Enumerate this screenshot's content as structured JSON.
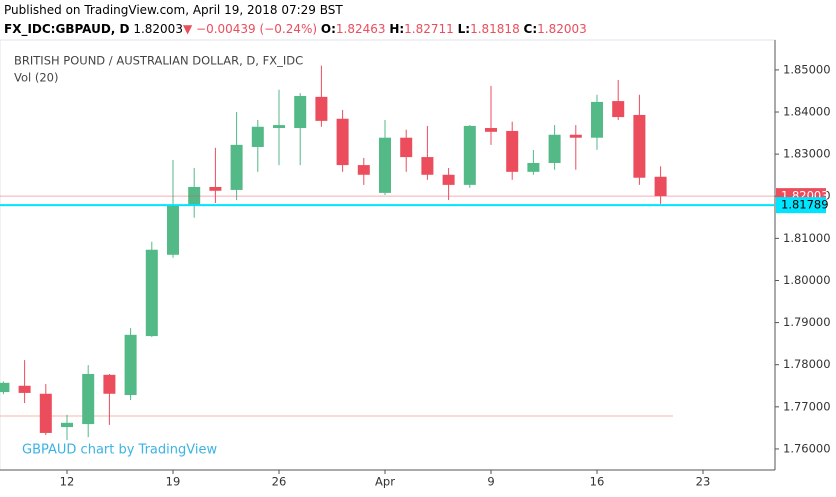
{
  "header": {
    "published": "Published on TradingView.com, April 19, 2018 07:29 BST",
    "symbol": "FX_IDC:GBPAUD, D",
    "price": "1.82003",
    "change": "−0.00439 (−0.24%)",
    "ohlc": [
      {
        "label": "O:",
        "value": "1.82463"
      },
      {
        "label": "H:",
        "value": "1.82711"
      },
      {
        "label": "L:",
        "value": "1.81818"
      },
      {
        "label": "C:",
        "value": "1.82003"
      }
    ]
  },
  "chart_data": {
    "type": "candlestick",
    "legend_title": "BRITISH POUND / AUSTRALIAN DOLLAR, D, FX_IDC",
    "indicator": "Vol (20)",
    "watermark": "GBPAUD chart by TradingView",
    "categories": [
      null,
      null,
      null,
      "12",
      null,
      null,
      null,
      null,
      "19",
      null,
      null,
      null,
      null,
      "26",
      null,
      null,
      null,
      null,
      "Apr",
      null,
      null,
      null,
      null,
      "9",
      null,
      null,
      null,
      null,
      "16",
      null,
      null,
      null,
      null,
      "23"
    ],
    "open": [
      1.7735,
      1.775,
      1.7731,
      1.7652,
      1.7659,
      1.7776,
      1.7728,
      1.7868,
      1.8061,
      1.8179,
      1.8222,
      1.8215,
      1.8317,
      1.8362,
      1.8362,
      1.8436,
      1.8384,
      1.8274,
      1.8208,
      1.8339,
      1.8293,
      1.8251,
      1.8227,
      1.8362,
      1.8355,
      1.8258,
      1.8279,
      1.8346,
      1.8339,
      1.8426,
      1.8393,
      1.82463,
      null,
      null
    ],
    "high": [
      1.776,
      1.7811,
      1.7754,
      1.7681,
      1.7799,
      1.7778,
      1.7887,
      1.8092,
      1.8286,
      1.8267,
      1.8315,
      1.84,
      1.8381,
      1.8453,
      1.8445,
      1.851,
      1.8405,
      1.8291,
      1.8381,
      1.8358,
      1.8367,
      1.8267,
      1.8369,
      1.8462,
      1.8377,
      1.831,
      1.8369,
      1.8369,
      1.8441,
      1.8476,
      1.8441,
      1.82711,
      null,
      null
    ],
    "low": [
      1.773,
      1.7709,
      1.7633,
      1.7621,
      1.7628,
      1.7657,
      1.7716,
      1.7866,
      1.8054,
      1.8149,
      1.8184,
      1.8191,
      1.8258,
      1.8274,
      1.8274,
      1.8365,
      1.8258,
      1.8227,
      1.8203,
      1.8258,
      1.8239,
      1.8191,
      1.822,
      1.8322,
      1.8239,
      1.8251,
      1.8263,
      1.8263,
      1.831,
      1.8381,
      1.8227,
      1.81818,
      null,
      null
    ],
    "close": [
      1.7757,
      1.7733,
      1.7638,
      1.7662,
      1.7778,
      1.7731,
      1.7871,
      1.8073,
      1.8179,
      1.8222,
      1.8213,
      1.8322,
      1.8365,
      1.8369,
      1.8438,
      1.8379,
      1.8274,
      1.8251,
      1.8339,
      1.8293,
      1.8251,
      1.8227,
      1.8367,
      1.8353,
      1.8258,
      1.8279,
      1.8346,
      1.8339,
      1.8424,
      1.8388,
      1.8244,
      1.82003,
      null,
      null
    ],
    "up_color": "#53b987",
    "down_color": "#eb4d5c",
    "ylim": [
      1.755,
      1.8571
    ],
    "yticks": [
      {
        "value": 1.76,
        "label": "1.76000"
      },
      {
        "value": 1.77,
        "label": "1.77000"
      },
      {
        "value": 1.78,
        "label": "1.78000"
      },
      {
        "value": 1.79,
        "label": "1.79000"
      },
      {
        "value": 1.8,
        "label": "1.80000"
      },
      {
        "value": 1.81,
        "label": "1.81000"
      },
      {
        "value": 1.82,
        "label": "1.82000"
      },
      {
        "value": 1.83,
        "label": "1.83000"
      },
      {
        "value": 1.84,
        "label": "1.84000"
      },
      {
        "value": 1.85,
        "label": "1.85000"
      }
    ],
    "price_lines": [
      {
        "value": 1.82003,
        "color": "#eb4d5c"
      },
      {
        "value": 1.81789,
        "color": "#00e5ff"
      }
    ]
  }
}
